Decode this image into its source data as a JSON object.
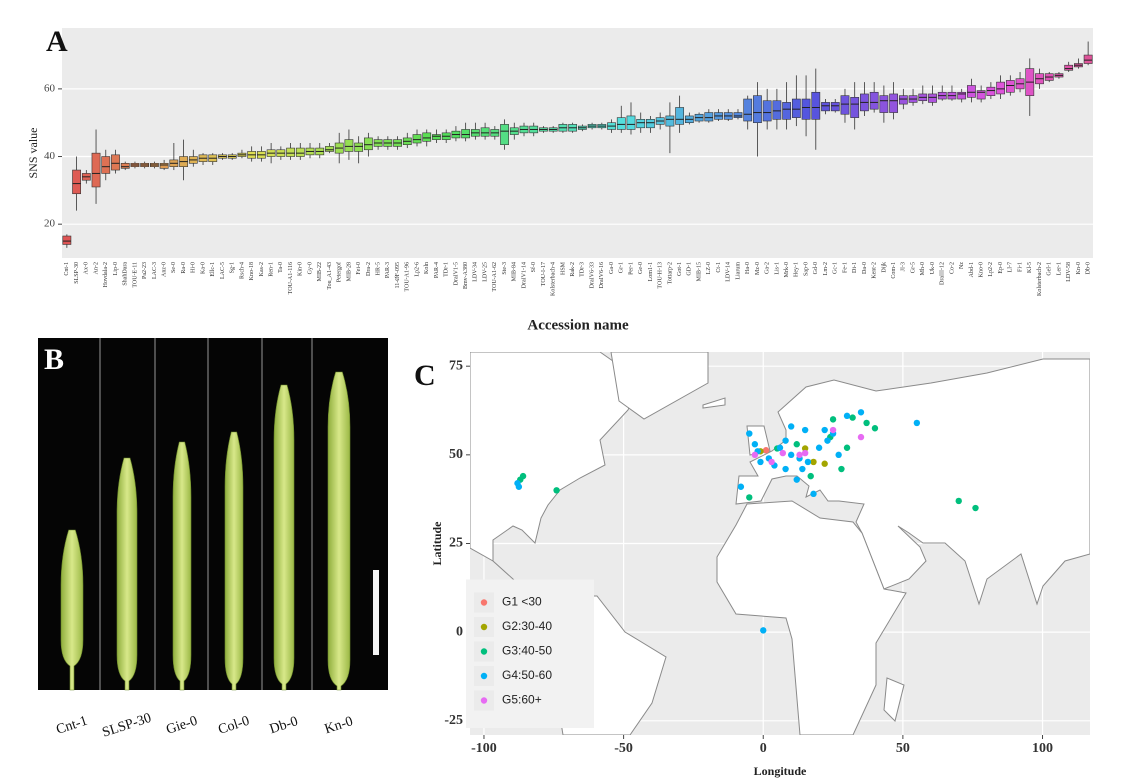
{
  "chart_data": [
    {
      "type": "box",
      "panel": "A",
      "y_label": "SNS value",
      "x_label": "Accession name",
      "categories": [
        "Cnt-1",
        "SLSP-30",
        "Ax-0",
        "An-2",
        "Hovdala-2",
        "Lip-0",
        "ShahDara",
        "TOU-E-11",
        "Pa2-23",
        "LAC-3",
        "Anz-0",
        "Se-0",
        "Ra-0",
        "Hi-0",
        "Ka-0",
        "Ellc-1",
        "LAC-5",
        "Sg-1",
        "Rsch-4",
        "Kno-18",
        "Kas-2",
        "Ren-1",
        "Ta-0",
        "TOU-A1-116",
        "Kin-0",
        "Gy-0",
        "MIB-22",
        "Tou_A1-43",
        "Petergof",
        "MIB-28",
        "Fei-0",
        "Dra-2",
        "HR-5",
        "PAR-3",
        "11-ØF-095",
        "TOU-A1-96",
        "Lp2-6",
        "Koln",
        "PAR-4",
        "TDr-1",
        "DraIV1-5",
        "Bmv-A380",
        "LDV-34",
        "LDV-25",
        "TOU-A1-62",
        "Ste-3",
        "MIB-84",
        "DraIV1-14",
        "Sf-0",
        "TOU-I-17",
        "Kolsterbach-4",
        "HSM",
        "Rak-2",
        "TDr-3",
        "DraIV6-33",
        "DraIV6-16",
        "Ga-0",
        "Gr-1",
        "Per-1",
        "Ge-0",
        "Lom1-1",
        "TOU-H-13",
        "Tottarp-2",
        "Got-1",
        "GD-1",
        "MIB-15",
        "LZ-0",
        "Ct-1",
        "LDV-14",
        "Liarum",
        "Ha-0",
        "Mz-0",
        "Ga-2",
        "Lis-1",
        "Mrk-0",
        "Hey-1",
        "Sap-0",
        "Gd-0",
        "Lm-2",
        "Gc-1",
        "Fe-1",
        "Di-1",
        "Da-0",
        "Kent-2",
        "Dijk",
        "Com-1",
        "JI-3",
        "Gr-5",
        "Mh-0",
        "Uk-0",
        "DraIII-12",
        "Co-2",
        "Nz",
        "Abd-1",
        "Kno-0",
        "Lp2-2",
        "Ep-0",
        "Ll-7",
        "Fi-1",
        "Kl-5",
        "Kolsterbach-2",
        "Gel-1",
        "Ler-1",
        "LDV-58",
        "Kn-0",
        "Db-0"
      ],
      "whisker_low": [
        13,
        24,
        32,
        26,
        33,
        35,
        36,
        36.5,
        36.5,
        36.5,
        36,
        36,
        33,
        37,
        37.5,
        37.5,
        39,
        39,
        39.5,
        38.5,
        38.5,
        38,
        39,
        39,
        39,
        39.5,
        39.5,
        41,
        38,
        39,
        38,
        40,
        42,
        42,
        42,
        42.5,
        43,
        43,
        44,
        44,
        44.5,
        44.5,
        45,
        45,
        45,
        42,
        45,
        46,
        46,
        47,
        47,
        47,
        47,
        47.5,
        48,
        48,
        47,
        47,
        46.5,
        47,
        47,
        48,
        41,
        47,
        49.5,
        50,
        50,
        50.5,
        50.5,
        51,
        48,
        40,
        48,
        48,
        48,
        49,
        46,
        42,
        52.5,
        53,
        50,
        48,
        52,
        53,
        50,
        51,
        54,
        55,
        55.5,
        55,
        56.5,
        56.5,
        56,
        56,
        56,
        57,
        57,
        58,
        59,
        52,
        60,
        62,
        63,
        65,
        66,
        67
      ],
      "q1": [
        14,
        29,
        33,
        31,
        35,
        36,
        36.5,
        37,
        37,
        37,
        36.5,
        37,
        37,
        38,
        38.5,
        38.5,
        39.5,
        39.5,
        40,
        39.5,
        39.5,
        40,
        40,
        40,
        40,
        40.5,
        40.5,
        41.5,
        41,
        41.5,
        41.5,
        42,
        43,
        43,
        43,
        43.5,
        44,
        44.5,
        45,
        45,
        45.5,
        45.5,
        46,
        46,
        46,
        43.5,
        46.5,
        47,
        47,
        47.5,
        47.5,
        47.5,
        47.5,
        48,
        48.5,
        48.5,
        48,
        48,
        48,
        48.5,
        48.5,
        49.5,
        49,
        49.5,
        50,
        50.5,
        50.5,
        51,
        51,
        51.5,
        50.5,
        50,
        50.5,
        51,
        51,
        51.5,
        51,
        51,
        53.5,
        53.5,
        52.5,
        51.5,
        53.5,
        54,
        53,
        53,
        55.5,
        56,
        56.5,
        56,
        57,
        57,
        57,
        57.5,
        57,
        58,
        58.5,
        59,
        60,
        58,
        61.5,
        62.5,
        63.5,
        65.5,
        66.5,
        67.5
      ],
      "median": [
        15,
        32,
        34,
        35,
        37,
        38,
        37,
        37.5,
        37.5,
        37.5,
        37.5,
        38,
        38.5,
        39,
        39.5,
        39.5,
        40,
        40,
        40.5,
        40.5,
        40.5,
        41,
        41,
        41,
        41,
        41.5,
        41.5,
        42,
        42.5,
        43,
        43,
        43.5,
        44,
        44,
        44,
        44.5,
        45,
        45.5,
        46,
        46,
        46.5,
        46.5,
        47,
        47,
        47,
        47.5,
        47.5,
        48,
        48,
        48,
        48,
        48.5,
        48.5,
        48.5,
        49,
        49,
        49,
        49.5,
        49.5,
        50,
        50,
        50.5,
        51,
        51,
        51,
        51.5,
        51.5,
        52,
        52,
        52,
        52.5,
        53,
        53,
        53.5,
        54,
        54,
        54.5,
        54.5,
        55,
        55,
        55.5,
        55.5,
        56,
        56,
        56.5,
        56.5,
        57,
        57,
        57.5,
        57.5,
        58,
        58,
        58.5,
        59,
        59,
        59.5,
        60,
        61,
        61.5,
        62,
        63,
        63.5,
        64,
        66,
        67,
        68.5
      ],
      "q3": [
        16.5,
        36,
        35,
        41,
        40,
        40.5,
        38,
        38,
        38,
        38,
        38,
        39,
        40,
        40,
        40.5,
        40.5,
        40.5,
        40.5,
        41,
        41.5,
        41.5,
        42,
        42,
        42.5,
        42.5,
        42.5,
        42.5,
        43,
        44,
        45,
        44,
        45.5,
        45,
        45,
        45,
        45.5,
        46.5,
        47,
        46.5,
        47,
        47.5,
        48,
        48,
        48.5,
        48,
        49.5,
        48.5,
        49,
        49,
        48.5,
        48.5,
        49.5,
        49.5,
        49,
        49.5,
        49.5,
        50,
        51.5,
        52,
        51,
        51,
        51.5,
        52,
        54.5,
        52,
        52.5,
        53,
        53,
        53,
        53,
        57,
        58,
        56.5,
        56.5,
        56,
        57,
        57,
        59,
        56,
        56,
        58,
        57.5,
        58.5,
        59,
        58,
        58.5,
        58,
        58,
        58.5,
        58.5,
        59,
        59,
        59,
        61,
        59.5,
        60.5,
        62,
        62.5,
        63,
        66,
        64.5,
        64.5,
        64.5,
        67,
        67.5,
        70
      ],
      "whisker_high": [
        17,
        40,
        36,
        48,
        42,
        42,
        38.5,
        38.5,
        38.5,
        38.5,
        39,
        44,
        45,
        42,
        41,
        41,
        41,
        41,
        42,
        43,
        43,
        44,
        43,
        44,
        44,
        44,
        44,
        44,
        47,
        48,
        46,
        47,
        46,
        46,
        46,
        47,
        48,
        48,
        48,
        48,
        49,
        50,
        50,
        50,
        49,
        51,
        50,
        50,
        50,
        49,
        49,
        50,
        50,
        49.5,
        50,
        50,
        51,
        55,
        56,
        53,
        52,
        53,
        56,
        58,
        53,
        53,
        54,
        54,
        54,
        54,
        58,
        62,
        60,
        60,
        62,
        64,
        64,
        66,
        57,
        57,
        60,
        62,
        62,
        62,
        61,
        62,
        60,
        60,
        61,
        61,
        61,
        61,
        60,
        63,
        61,
        62,
        64,
        64,
        65,
        69,
        66,
        65,
        65,
        68,
        69,
        74
      ],
      "ylim": [
        10,
        78
      ],
      "yticks": [
        20,
        40,
        60
      ],
      "grid": true
    },
    {
      "type": "scatter",
      "panel": "C",
      "x_label": "Longitude",
      "y_label": "Latitude",
      "xlim": [
        -105,
        117
      ],
      "ylim": [
        -29,
        79
      ],
      "xticks": [
        -100,
        -50,
        0,
        50,
        100
      ],
      "yticks": [
        -25,
        0,
        25,
        50,
        75
      ],
      "grid": true,
      "legend": "bottom-left",
      "series": [
        {
          "name": "G1 <30",
          "color": "#F8766D",
          "x": [
            1
          ],
          "y": [
            51.3
          ]
        },
        {
          "name": "G2:30-40",
          "color": "#A3A500",
          "x": [
            -1,
            22,
            15,
            18
          ],
          "y": [
            51,
            47.5,
            51.8,
            48
          ]
        },
        {
          "name": "G3:40-50",
          "color": "#00BF7D",
          "x": [
            -87,
            -86,
            -74,
            37,
            40,
            32,
            25,
            70,
            76,
            -5,
            28,
            30,
            24,
            12,
            5,
            17
          ],
          "y": [
            43,
            44,
            40,
            59,
            57.5,
            60.5,
            60,
            37,
            35,
            38,
            46,
            52,
            55,
            53,
            51.8,
            44
          ]
        },
        {
          "name": "G4:50-60",
          "color": "#00B0F6",
          "x": [
            -88,
            -87.5,
            -8,
            -1,
            2,
            6,
            10,
            13,
            16,
            20,
            23,
            25,
            30,
            35,
            55,
            -3,
            -5,
            8,
            14,
            12,
            18,
            0,
            4,
            10,
            15,
            8,
            -2,
            27,
            22
          ],
          "y": [
            42,
            41,
            41,
            48,
            49,
            52,
            50,
            49,
            48,
            52,
            54,
            56,
            61,
            62,
            59,
            53,
            56,
            46,
            46,
            43,
            39,
            0.5,
            47,
            58,
            57,
            54,
            51,
            50,
            57
          ]
        },
        {
          "name": "G5:60+",
          "color": "#E76BF3",
          "x": [
            -3,
            7,
            13,
            15,
            25,
            35,
            3
          ],
          "y": [
            50,
            50.5,
            50,
            50.5,
            57,
            55,
            48
          ]
        }
      ]
    }
  ],
  "photo": {
    "panel": "B",
    "labels": [
      "Cnt-1",
      "SLSP-30",
      "Gie-0",
      "Col-0",
      "Db-0",
      "Kn-0"
    ]
  }
}
